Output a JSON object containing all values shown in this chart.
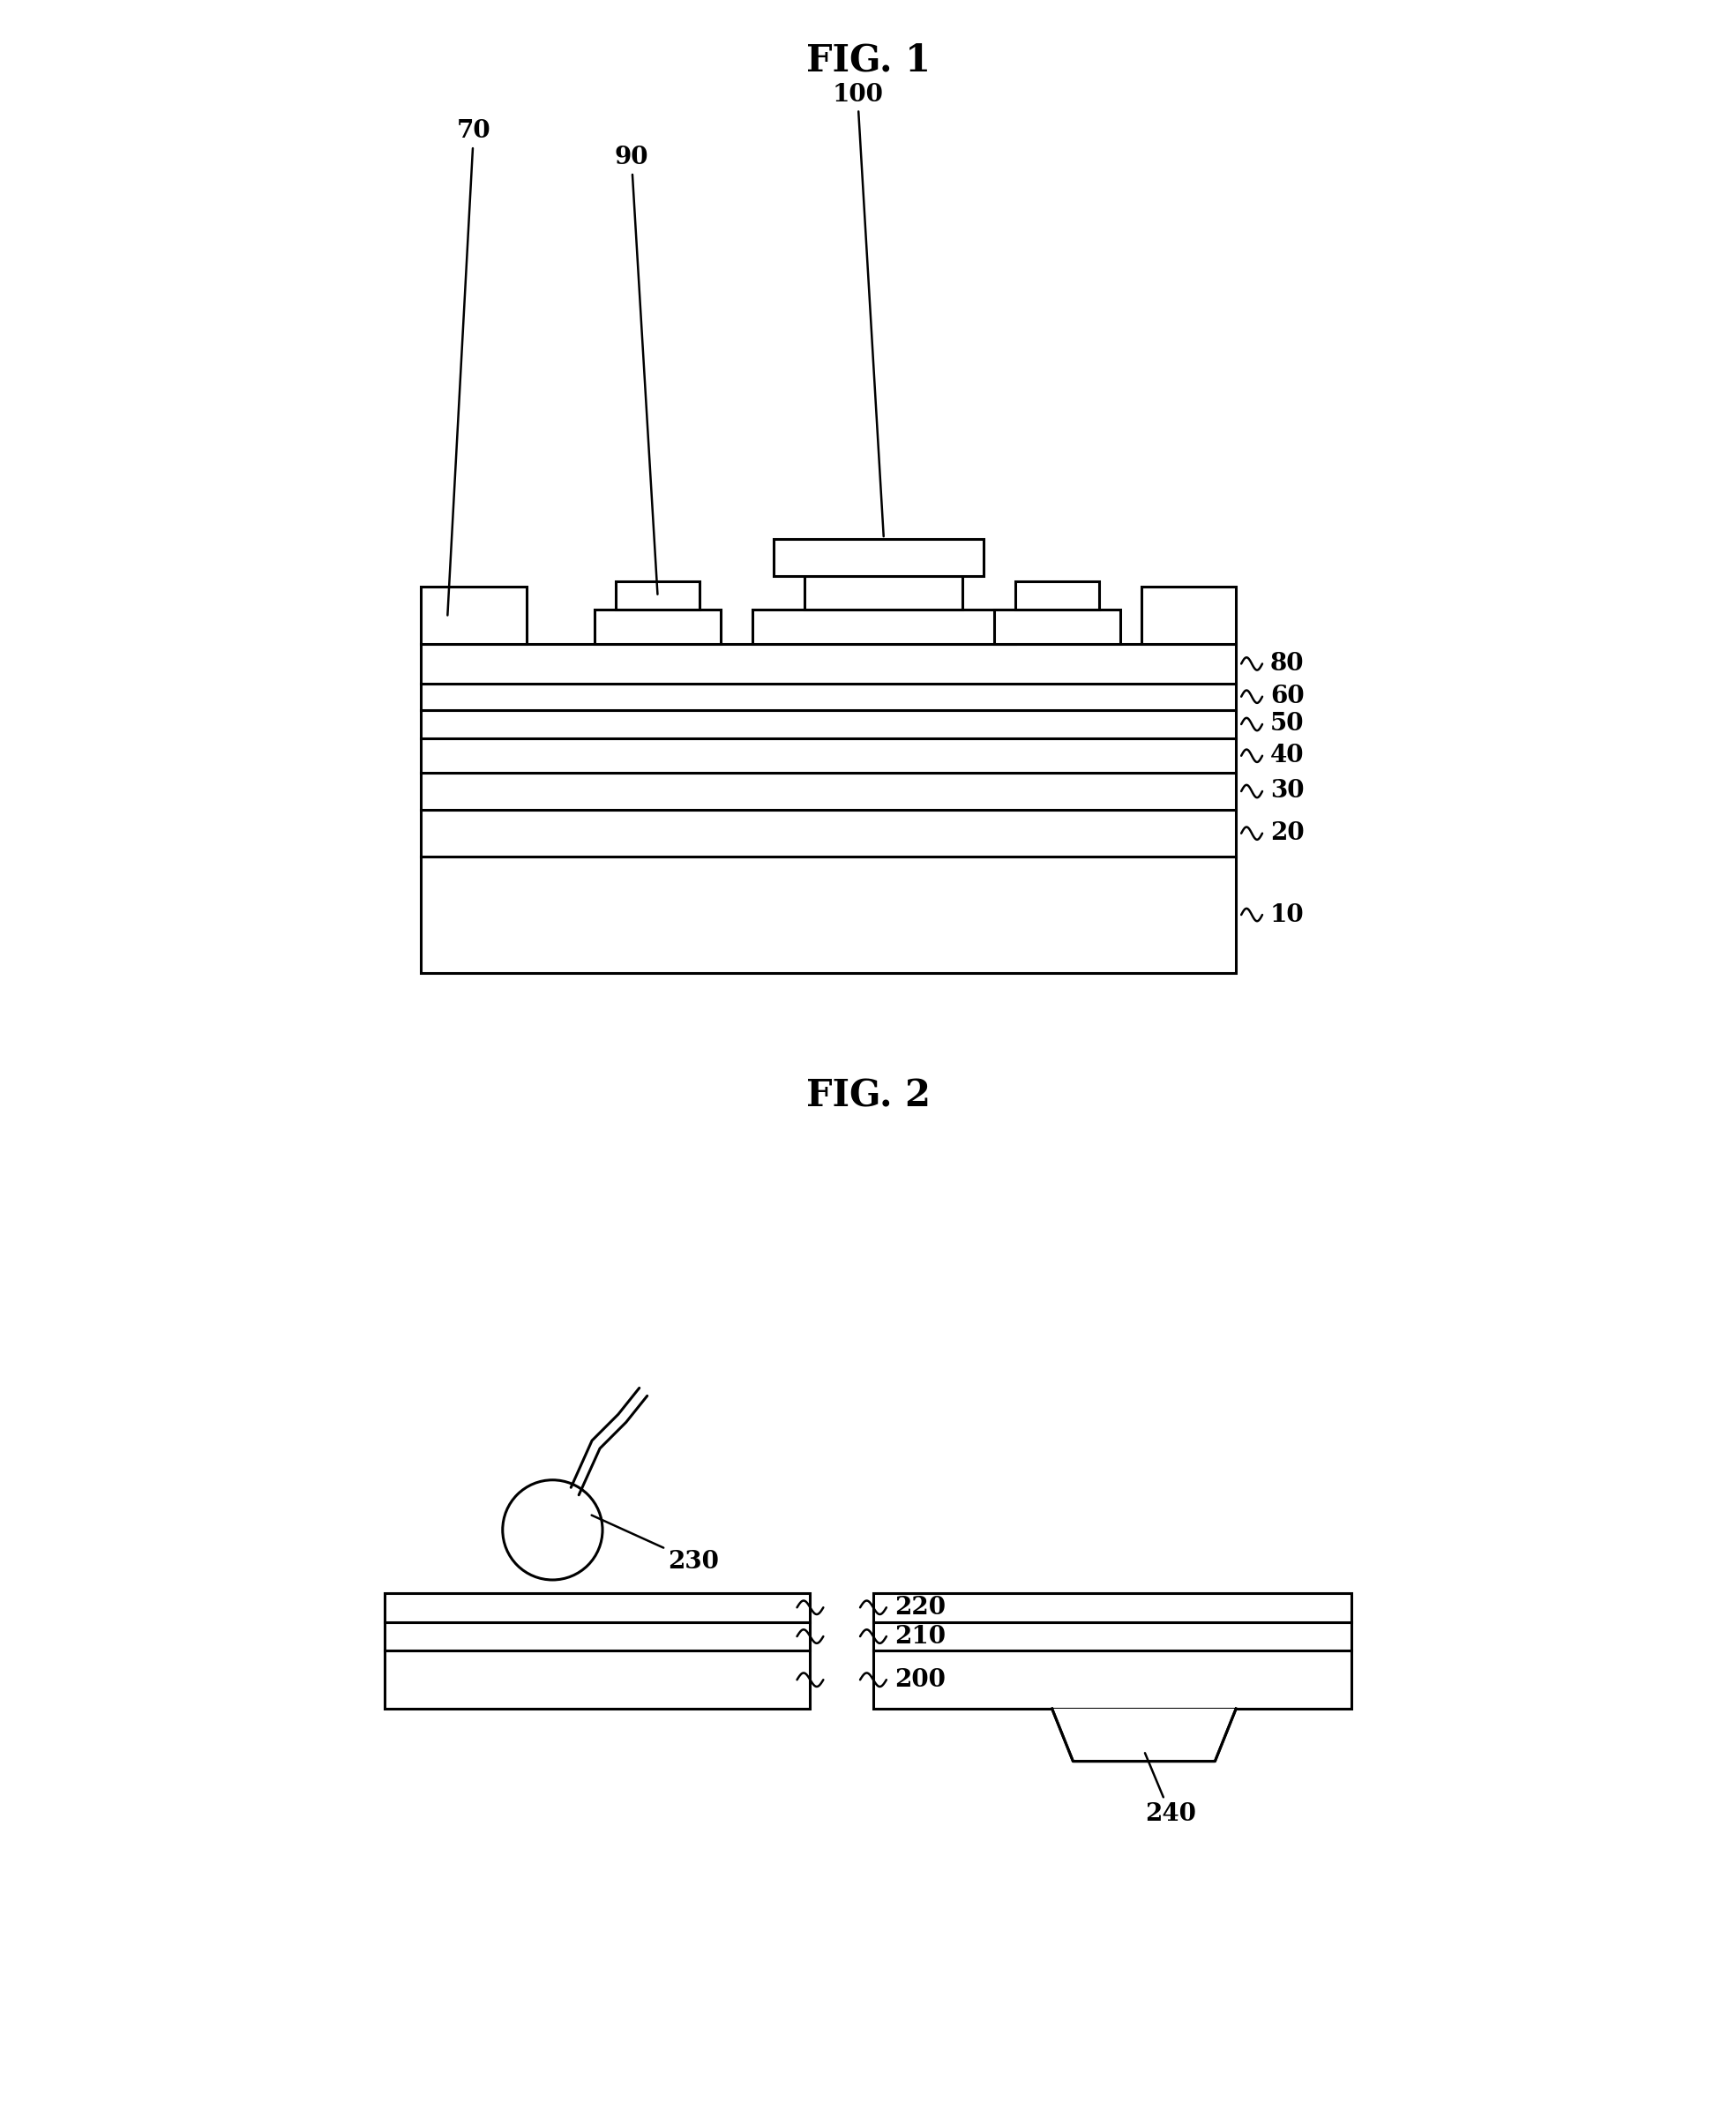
{
  "fig1_title": "FIG. 1",
  "fig2_title": "FIG. 2",
  "background_color": "#ffffff",
  "line_color": "#000000",
  "line_width": 2.2,
  "label_fontsize": 20,
  "title_fontsize": 30
}
